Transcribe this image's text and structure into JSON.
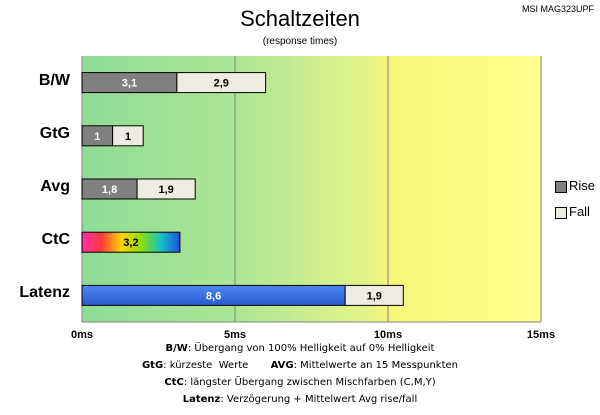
{
  "chart_data": {
    "type": "bar",
    "orientation": "horizontal",
    "stacked": true,
    "title": "Schaltzeiten",
    "subtitle": "(response times)",
    "model": "MSI MAG323UPF",
    "categories": [
      "B/W",
      "GtG",
      "Avg",
      "CtC",
      "Latenz"
    ],
    "series": [
      {
        "name": "Rise",
        "values": [
          3.1,
          1,
          1.8,
          3.2,
          8.6
        ],
        "labels": [
          "3,1",
          "1",
          "1,8",
          "3,2",
          "8,6"
        ],
        "color": "#808080"
      },
      {
        "name": "Fall",
        "values": [
          2.9,
          1,
          1.9,
          null,
          1.9
        ],
        "labels": [
          "2,9",
          "1",
          "1,9",
          "",
          "1,9"
        ],
        "color": "#eeece1"
      }
    ],
    "special_colors": {
      "CtC": "rainbow",
      "Latenz": "#3a6fe0"
    },
    "xlim": [
      0,
      15
    ],
    "xticks": [
      0,
      5,
      10,
      15
    ],
    "xtick_labels": [
      "0ms",
      "5ms",
      "10ms",
      "15ms"
    ],
    "background_gradient": [
      "#8fdc95",
      "#c9ee8c",
      "#f5f77a",
      "#ffff88"
    ],
    "grid": true,
    "legend": "right"
  },
  "footnotes": [
    {
      "key": "B/W",
      "text": ":  Übergang von 100% Helligkeit auf 0% Helligkeit"
    },
    {
      "key": "GtG",
      "text": ": kürzeste  Werte       ",
      "key2": "AVG",
      "text2": ": Mittelwerte  an 15 Messpunkten"
    },
    {
      "key": "CtC",
      "text": ": längster Übergang  zwischen Mischfarben  (C,M,Y)"
    },
    {
      "key": "Latenz",
      "text": ": Verzögerung  + Mittelwert Avg rise/fall"
    }
  ]
}
